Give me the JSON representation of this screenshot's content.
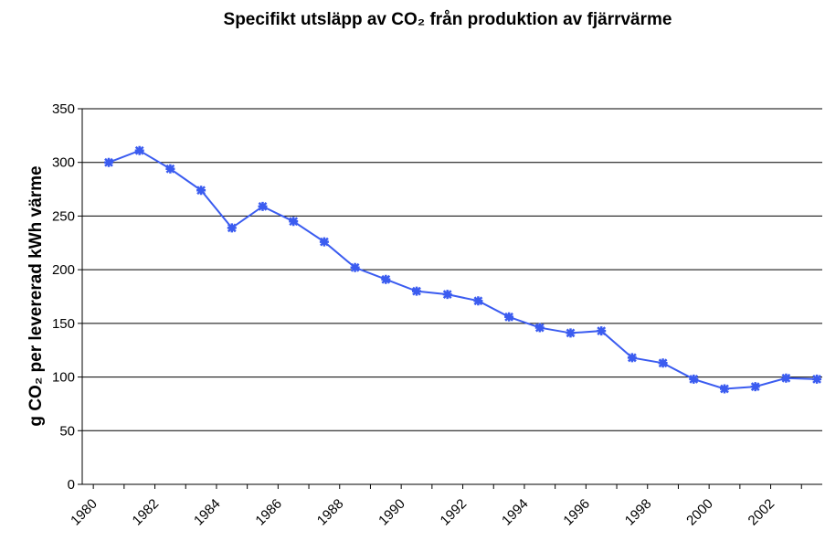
{
  "chart_data": {
    "type": "line",
    "title": "Specifikt utsläpp av CO₂ från produktion av fjärrvärme",
    "y_label": "g CO₂ per levererad kWh värme",
    "categories": [
      "1980",
      null,
      "1982",
      null,
      "1984",
      null,
      "1986",
      null,
      "1988",
      null,
      "1990",
      null,
      "1992",
      null,
      "1994",
      null,
      "1996",
      null,
      "1998",
      null,
      "2000",
      null,
      "2002",
      null
    ],
    "series": [
      {
        "name": "CO₂",
        "color": "#3b5cf0",
        "values": [
          300,
          311,
          294,
          274,
          239,
          259,
          245,
          226,
          202,
          191,
          180,
          177,
          171,
          156,
          146,
          141,
          143,
          118,
          113,
          98,
          89,
          91,
          99,
          98
        ]
      }
    ],
    "ylim": [
      0,
      350
    ],
    "yticks": [
      0,
      50,
      100,
      150,
      200,
      250,
      300,
      350
    ],
    "grid": true
  }
}
